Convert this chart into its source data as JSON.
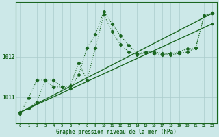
{
  "bg_color": "#cce8e8",
  "line_color": "#1a6620",
  "grid_color": "#aacccc",
  "text_color": "#1a6620",
  "xlabel": "Graphe pression niveau de la mer (hPa)",
  "ylabel_ticks": [
    1011,
    1012
  ],
  "xlim": [
    -0.5,
    23.5
  ],
  "ylim": [
    1010.35,
    1013.35
  ],
  "xticks": [
    0,
    1,
    2,
    3,
    4,
    5,
    6,
    7,
    8,
    9,
    10,
    11,
    12,
    13,
    14,
    15,
    16,
    17,
    18,
    19,
    20,
    21,
    22,
    23
  ],
  "trend1_x": [
    0,
    23
  ],
  "trend1_y": [
    1010.62,
    1013.08
  ],
  "trend2_x": [
    0,
    23
  ],
  "trend2_y": [
    1010.62,
    1012.82
  ],
  "wiggly1_x": [
    0,
    1,
    2,
    3,
    4,
    5,
    6,
    7,
    8,
    9,
    10,
    11,
    12,
    13,
    14,
    15,
    16,
    17,
    18,
    19,
    20,
    21,
    22,
    23
  ],
  "wiggly1_y": [
    1010.62,
    1010.72,
    1010.88,
    1011.42,
    1011.42,
    1011.25,
    1011.28,
    1011.85,
    1011.42,
    1012.22,
    1013.05,
    1012.62,
    1012.3,
    1012.12,
    1012.05,
    1012.1,
    1012.08,
    1012.05,
    1012.08,
    1012.12,
    1012.2,
    1012.22,
    1013.02,
    1013.08
  ],
  "wiggly2_x": [
    0,
    1,
    2,
    3,
    4,
    5,
    6,
    7,
    8,
    9,
    10,
    11,
    12,
    13,
    14,
    15,
    16,
    17,
    18,
    19,
    20,
    21,
    22,
    23
  ],
  "wiggly2_y": [
    1010.58,
    1010.98,
    1011.42,
    1011.42,
    1011.25,
    1011.25,
    1011.22,
    1011.55,
    1012.22,
    1012.55,
    1013.12,
    1012.82,
    1012.52,
    1012.28,
    1012.08,
    1012.12,
    1012.12,
    1012.08,
    1012.05,
    1012.08,
    1012.12,
    1012.22,
    1013.02,
    1013.08
  ]
}
